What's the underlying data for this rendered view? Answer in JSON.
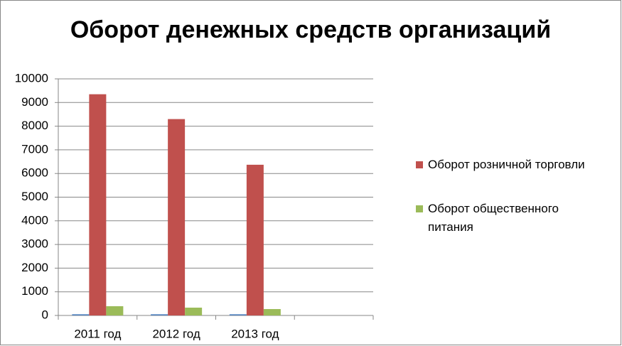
{
  "chart_data": {
    "type": "bar",
    "title": "Оборот денежных средств организаций",
    "categories": [
      "2011 год",
      "2012 год",
      "2013 год",
      null
    ],
    "series": [
      {
        "color": "#4f81bd",
        "values": [
          50,
          50,
          50,
          null
        ]
      },
      {
        "name": "Оборот розничной торговли",
        "color": "#c0504d",
        "values": [
          9350,
          8300,
          6370,
          null
        ]
      },
      {
        "name": "Оборот общественного питания",
        "color": "#9bbb59",
        "values": [
          390,
          330,
          270,
          null
        ]
      }
    ],
    "ylim": [
      0,
      10000
    ],
    "yticks": [
      0,
      1000,
      2000,
      3000,
      4000,
      5000,
      6000,
      7000,
      8000,
      9000,
      10000
    ],
    "grid": true,
    "legend": "right"
  }
}
